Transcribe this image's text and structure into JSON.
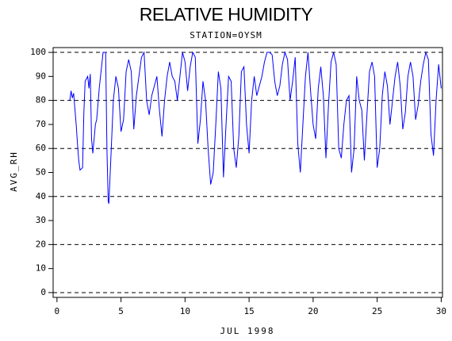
{
  "chart_data": {
    "type": "line",
    "title": "RELATIVE HUMIDITY",
    "subtitle": "STATION=OYSM",
    "x_label": "JUL 1998",
    "y_label": "AVG_RH",
    "color": "#0000ff",
    "xlim": [
      -0.3,
      30.1
    ],
    "ylim": [
      -2,
      102
    ],
    "xticks": [
      0,
      5,
      10,
      15,
      20,
      25,
      30
    ],
    "yticks": [
      0,
      10,
      20,
      30,
      40,
      50,
      60,
      70,
      80,
      90,
      100
    ],
    "ygrid": [
      0,
      20,
      40,
      60,
      80,
      100
    ],
    "x": [
      1.0,
      1.1,
      1.2,
      1.3,
      1.5,
      1.6,
      1.7,
      1.8,
      2.0,
      2.1,
      2.2,
      2.4,
      2.5,
      2.6,
      2.7,
      2.8,
      3.0,
      3.1,
      3.3,
      3.5,
      3.6,
      3.8,
      3.9,
      4.0,
      4.05,
      4.2,
      4.4,
      4.6,
      4.8,
      5.0,
      5.2,
      5.4,
      5.6,
      5.8,
      6.0,
      6.2,
      6.4,
      6.6,
      6.8,
      7.0,
      7.2,
      7.4,
      7.6,
      7.8,
      8.0,
      8.2,
      8.4,
      8.6,
      8.8,
      9.0,
      9.2,
      9.4,
      9.6,
      9.8,
      10.0,
      10.2,
      10.4,
      10.6,
      10.8,
      11.0,
      11.2,
      11.4,
      11.6,
      11.8,
      12.0,
      12.2,
      12.4,
      12.6,
      12.8,
      13.0,
      13.2,
      13.4,
      13.6,
      13.8,
      14.0,
      14.2,
      14.4,
      14.6,
      14.8,
      15.0,
      15.2,
      15.4,
      15.6,
      15.8,
      16.0,
      16.2,
      16.4,
      16.6,
      16.8,
      17.0,
      17.2,
      17.4,
      17.6,
      17.8,
      18.0,
      18.2,
      18.4,
      18.6,
      18.8,
      19.0,
      19.2,
      19.4,
      19.6,
      19.8,
      20.0,
      20.2,
      20.4,
      20.6,
      20.8,
      21.0,
      21.2,
      21.4,
      21.6,
      21.8,
      22.0,
      22.2,
      22.4,
      22.6,
      22.8,
      23.0,
      23.2,
      23.4,
      23.6,
      23.8,
      24.0,
      24.2,
      24.4,
      24.6,
      24.8,
      25.0,
      25.2,
      25.4,
      25.6,
      25.8,
      26.0,
      26.2,
      26.4,
      26.6,
      26.8,
      27.0,
      27.2,
      27.4,
      27.6,
      27.8,
      28.0,
      28.2,
      28.4,
      28.6,
      28.8,
      29.0,
      29.2,
      29.4,
      29.6,
      29.8,
      30.0
    ],
    "values": [
      80,
      84,
      81,
      83,
      70,
      62,
      55,
      51,
      52,
      75,
      88,
      90,
      85,
      91,
      64,
      58,
      70,
      72,
      85,
      95,
      100,
      100,
      60,
      38,
      37,
      55,
      80,
      90,
      85,
      67,
      72,
      92,
      97,
      92,
      68,
      82,
      90,
      98,
      100,
      80,
      74,
      82,
      86,
      90,
      76,
      65,
      80,
      90,
      96,
      90,
      88,
      80,
      90,
      100,
      96,
      84,
      94,
      100,
      98,
      62,
      72,
      88,
      80,
      60,
      45,
      50,
      70,
      92,
      85,
      48,
      70,
      90,
      88,
      60,
      52,
      65,
      92,
      94,
      70,
      58,
      80,
      90,
      82,
      86,
      90,
      96,
      100,
      100,
      99,
      88,
      82,
      86,
      95,
      100,
      97,
      80,
      88,
      98,
      62,
      50,
      70,
      90,
      100,
      84,
      70,
      64,
      85,
      94,
      82,
      56,
      78,
      96,
      100,
      95,
      60,
      56,
      70,
      80,
      82,
      50,
      60,
      90,
      80,
      76,
      55,
      74,
      92,
      96,
      90,
      52,
      60,
      82,
      92,
      86,
      70,
      80,
      90,
      96,
      86,
      68,
      75,
      90,
      96,
      90,
      72,
      78,
      88,
      95,
      100,
      97,
      66,
      57,
      80,
      95,
      85
    ]
  }
}
